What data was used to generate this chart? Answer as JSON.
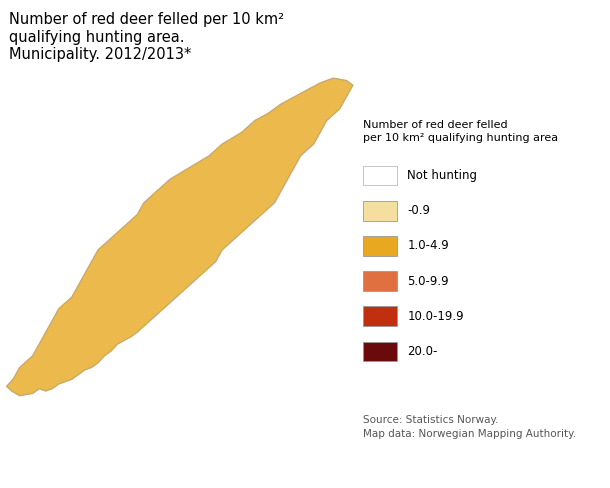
{
  "title": "Number of red deer felled per 10 km²\nqualifying hunting area.\nMunicipality. 2012/2013*",
  "legend_title": "Number of red deer felled\nper 10 km² qualifying hunting area",
  "legend_labels": [
    "Not hunting",
    "-0.9",
    "1.0-4.9",
    "5.0-9.9",
    "10.0-19.9",
    "20.0-"
  ],
  "legend_colors": [
    "#ffffff",
    "#f5dfa0",
    "#e8a820",
    "#e07040",
    "#c03010",
    "#6b0a0a"
  ],
  "border_color": "#aaaaaa",
  "background_color": "#ffffff",
  "source_text": "Source: Statistics Norway.\nMap data: Norwegian Mapping Authority.",
  "title_fontsize": 10.5,
  "legend_fontsize": 8.5,
  "source_fontsize": 7.5,
  "map_xlim": [
    4.0,
    32.0
  ],
  "map_ylim": [
    57.0,
    71.5
  ]
}
